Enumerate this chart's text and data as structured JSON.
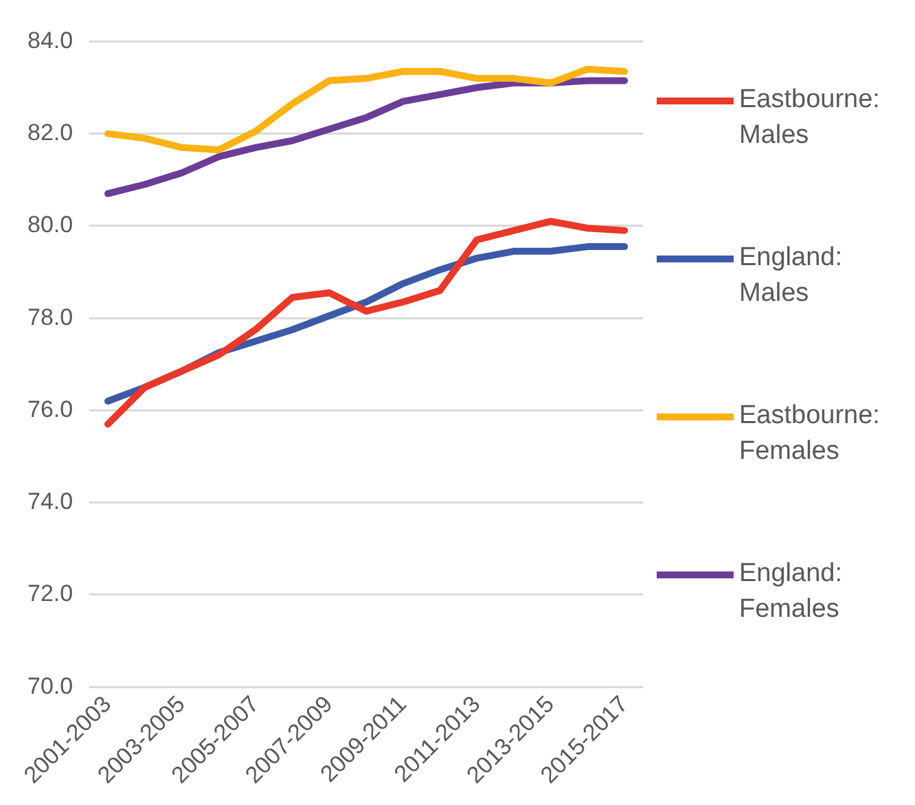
{
  "chart_data": {
    "type": "line",
    "categories": [
      "2001-2003",
      null,
      "2003-2005",
      null,
      "2005-2007",
      null,
      "2007-2009",
      null,
      "2009-2011",
      null,
      "2011-2013",
      null,
      "2013-2015",
      null,
      "2015-2017"
    ],
    "ylim": [
      70,
      84
    ],
    "yticks": [
      {
        "value": 70,
        "label": "70.0"
      },
      {
        "value": 72,
        "label": "72.0"
      },
      {
        "value": 74,
        "label": "74.0"
      },
      {
        "value": 76,
        "label": "76.0"
      },
      {
        "value": 78,
        "label": "78.0"
      },
      {
        "value": 80,
        "label": "80.0"
      },
      {
        "value": 82,
        "label": "82.0"
      },
      {
        "value": 84,
        "label": "84.0"
      }
    ],
    "grid": "y",
    "legend": "right",
    "marker": "none",
    "line_style": "solid",
    "series": [
      {
        "name": "Eastbourne: Males",
        "color": "#e8392a",
        "values": [
          75.7,
          76.5,
          76.85,
          77.2,
          77.75,
          78.45,
          78.55,
          78.15,
          78.35,
          78.6,
          79.7,
          79.9,
          80.1,
          79.95,
          79.9
        ]
      },
      {
        "name": "England: Males",
        "color": "#3d5aa8",
        "values": [
          76.2,
          76.5,
          76.85,
          77.25,
          77.5,
          77.75,
          78.05,
          78.35,
          78.75,
          79.05,
          79.3,
          79.45,
          79.45,
          79.55,
          79.55
        ]
      },
      {
        "name": "Eastbourne: Females",
        "color": "#fbb214",
        "values": [
          82.0,
          81.9,
          81.7,
          81.65,
          82.05,
          82.65,
          83.15,
          83.2,
          83.35,
          83.35,
          83.2,
          83.2,
          83.1,
          83.4,
          83.35
        ]
      },
      {
        "name": "England: Females",
        "color": "#6a3d96",
        "values": [
          80.7,
          80.9,
          81.15,
          81.5,
          81.7,
          81.85,
          82.1,
          82.35,
          82.7,
          82.85,
          83.0,
          83.1,
          83.1,
          83.15,
          83.15
        ]
      }
    ]
  }
}
